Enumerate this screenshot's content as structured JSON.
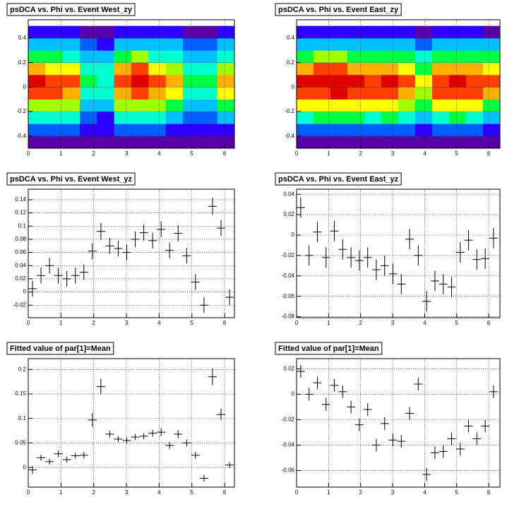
{
  "chart_data": [
    {
      "type": "heatmap",
      "title": "psDCA vs. Phi vs. Event West_zy",
      "xlim": [
        0,
        6.3
      ],
      "ylim": [
        -0.5,
        0.55
      ],
      "xticks": [
        0,
        1,
        2,
        3,
        4,
        5,
        6
      ],
      "yticks": [
        -0.4,
        -0.2,
        0,
        0.2,
        0.4
      ],
      "grid": true,
      "z_xlim": [
        0,
        6.3
      ],
      "z_ylim": [
        -0.5,
        0.5
      ],
      "z": [
        [
          0.1,
          0.1,
          0.1,
          0.05,
          0.05,
          0.1,
          0.1,
          0.1,
          0.1,
          0.05,
          0.05,
          0.1
        ],
        [
          0.25,
          0.25,
          0.25,
          0.15,
          0.15,
          0.25,
          0.25,
          0.25,
          0.2,
          0.15,
          0.15,
          0.2
        ],
        [
          0.4,
          0.4,
          0.4,
          0.25,
          0.2,
          0.4,
          0.4,
          0.4,
          0.35,
          0.25,
          0.25,
          0.35
        ],
        [
          0.6,
          0.6,
          0.55,
          0.35,
          0.3,
          0.55,
          0.6,
          0.55,
          0.5,
          0.35,
          0.35,
          0.5
        ],
        [
          0.8,
          0.8,
          0.75,
          0.45,
          0.4,
          0.75,
          0.8,
          0.75,
          0.7,
          0.45,
          0.45,
          0.7
        ],
        [
          0.95,
          0.85,
          0.8,
          0.5,
          0.45,
          0.85,
          0.92,
          0.8,
          0.75,
          0.5,
          0.5,
          0.75
        ],
        [
          0.75,
          0.7,
          0.65,
          0.45,
          0.4,
          0.75,
          0.8,
          0.65,
          0.6,
          0.45,
          0.45,
          0.6
        ],
        [
          0.5,
          0.5,
          0.45,
          0.35,
          0.3,
          0.5,
          0.55,
          0.45,
          0.45,
          0.35,
          0.35,
          0.45
        ],
        [
          0.3,
          0.3,
          0.3,
          0.25,
          0.2,
          0.3,
          0.3,
          0.3,
          0.3,
          0.25,
          0.25,
          0.3
        ],
        [
          0.15,
          0.15,
          0.15,
          0.1,
          0.1,
          0.15,
          0.15,
          0.15,
          0.15,
          0.1,
          0.1,
          0.15
        ]
      ]
    },
    {
      "type": "heatmap",
      "title": "psDCA vs. Phi vs. Event East_zy",
      "xlim": [
        0,
        6.35
      ],
      "ylim": [
        -0.5,
        0.55
      ],
      "xticks": [
        0,
        1,
        2,
        3,
        4,
        5,
        6
      ],
      "yticks": [
        -0.4,
        -0.2,
        0,
        0.2,
        0.4
      ],
      "grid": true,
      "z_xlim": [
        0,
        6.35
      ],
      "z_ylim": [
        -0.5,
        0.5
      ],
      "z": [
        [
          0.08,
          0.1,
          0.1,
          0.1,
          0.1,
          0.1,
          0.1,
          0.08,
          0.1,
          0.1,
          0.1,
          0.05
        ],
        [
          0.25,
          0.25,
          0.25,
          0.25,
          0.25,
          0.25,
          0.25,
          0.2,
          0.25,
          0.25,
          0.25,
          0.2
        ],
        [
          0.4,
          0.45,
          0.45,
          0.45,
          0.4,
          0.45,
          0.4,
          0.3,
          0.4,
          0.45,
          0.4,
          0.35
        ],
        [
          0.6,
          0.65,
          0.6,
          0.6,
          0.6,
          0.6,
          0.55,
          0.45,
          0.6,
          0.6,
          0.6,
          0.5
        ],
        [
          0.8,
          0.8,
          0.85,
          0.8,
          0.75,
          0.8,
          0.7,
          0.55,
          0.75,
          0.8,
          0.75,
          0.7
        ],
        [
          0.85,
          0.85,
          0.9,
          0.85,
          0.8,
          0.85,
          0.75,
          0.6,
          0.8,
          0.85,
          0.8,
          0.75
        ],
        [
          0.7,
          0.75,
          0.75,
          0.7,
          0.7,
          0.7,
          0.65,
          0.5,
          0.7,
          0.7,
          0.7,
          0.6
        ],
        [
          0.5,
          0.55,
          0.55,
          0.5,
          0.5,
          0.5,
          0.45,
          0.4,
          0.5,
          0.5,
          0.5,
          0.45
        ],
        [
          0.35,
          0.35,
          0.35,
          0.35,
          0.3,
          0.35,
          0.3,
          0.25,
          0.3,
          0.35,
          0.3,
          0.3
        ],
        [
          0.15,
          0.2,
          0.2,
          0.2,
          0.15,
          0.15,
          0.15,
          0.1,
          0.15,
          0.15,
          0.15,
          0.1
        ]
      ]
    },
    {
      "type": "errorbar",
      "title": "psDCA vs. Phi vs. Event West_yz",
      "xlim": [
        0,
        6.3
      ],
      "ylim": [
        -0.039,
        0.156
      ],
      "xticks": [
        0,
        1,
        2,
        3,
        4,
        5,
        6
      ],
      "yticks": [
        -0.02,
        0,
        0.02,
        0.04,
        0.06,
        0.08,
        0.1,
        0.12,
        0.14
      ],
      "grid": true,
      "x": [
        0.13,
        0.39,
        0.65,
        0.92,
        1.18,
        1.44,
        1.7,
        1.96,
        2.22,
        2.49,
        2.75,
        3.01,
        3.27,
        3.53,
        3.8,
        4.06,
        4.32,
        4.58,
        4.84,
        5.11,
        5.37,
        5.63,
        5.89,
        6.15
      ],
      "values": [
        0.005,
        0.025,
        0.04,
        0.025,
        0.02,
        0.025,
        0.03,
        0.062,
        0.092,
        0.07,
        0.066,
        0.06,
        0.08,
        0.09,
        0.078,
        0.095,
        0.063,
        0.089,
        0.055,
        0.015,
        -0.02,
        0.13,
        0.097,
        -0.008
      ],
      "errors": [
        0.012,
        0.012,
        0.012,
        0.012,
        0.012,
        0.012,
        0.012,
        0.012,
        0.013,
        0.012,
        0.012,
        0.012,
        0.012,
        0.012,
        0.012,
        0.012,
        0.012,
        0.012,
        0.012,
        0.012,
        0.012,
        0.013,
        0.012,
        0.012
      ]
    },
    {
      "type": "errorbar",
      "title": "psDCA vs. Phi vs. Event East_yz",
      "xlim": [
        0,
        6.35
      ],
      "ylim": [
        -0.081,
        0.045
      ],
      "xticks": [
        0,
        1,
        2,
        3,
        4,
        5,
        6
      ],
      "yticks": [
        -0.08,
        -0.06,
        -0.04,
        -0.02,
        0,
        0.02,
        0.04
      ],
      "grid": true,
      "x": [
        0.13,
        0.39,
        0.65,
        0.92,
        1.18,
        1.44,
        1.7,
        1.96,
        2.22,
        2.49,
        2.75,
        3.01,
        3.27,
        3.53,
        3.8,
        4.06,
        4.32,
        4.58,
        4.84,
        5.11,
        5.37,
        5.63,
        5.89,
        6.15
      ],
      "values": [
        0.027,
        -0.02,
        0.003,
        -0.022,
        0.004,
        -0.014,
        -0.022,
        -0.025,
        -0.022,
        -0.034,
        -0.03,
        -0.038,
        -0.048,
        -0.004,
        -0.02,
        -0.065,
        -0.045,
        -0.048,
        -0.051,
        -0.017,
        -0.005,
        -0.024,
        -0.023,
        -0.003
      ],
      "errors": [
        0.01,
        0.01,
        0.01,
        0.01,
        0.01,
        0.01,
        0.01,
        0.01,
        0.01,
        0.01,
        0.01,
        0.01,
        0.01,
        0.01,
        0.01,
        0.01,
        0.01,
        0.01,
        0.01,
        0.01,
        0.01,
        0.01,
        0.01,
        0.01
      ]
    },
    {
      "type": "errorbar",
      "title": "Fitted value of par[1]=Mean",
      "xlim": [
        0,
        6.3
      ],
      "ylim": [
        -0.04,
        0.222
      ],
      "xticks": [
        0,
        1,
        2,
        3,
        4,
        5,
        6
      ],
      "yticks": [
        0,
        0.05,
        0.1,
        0.15,
        0.2
      ],
      "grid": true,
      "x": [
        0.13,
        0.39,
        0.65,
        0.92,
        1.18,
        1.44,
        1.7,
        1.96,
        2.22,
        2.49,
        2.75,
        3.01,
        3.27,
        3.53,
        3.8,
        4.06,
        4.32,
        4.58,
        4.84,
        5.11,
        5.37,
        5.63,
        5.89,
        6.15
      ],
      "values": [
        -0.005,
        0.02,
        0.012,
        0.028,
        0.016,
        0.024,
        0.025,
        0.097,
        0.165,
        0.068,
        0.058,
        0.055,
        0.062,
        0.064,
        0.07,
        0.072,
        0.045,
        0.068,
        0.05,
        0.025,
        -0.022,
        0.185,
        0.108,
        0.005
      ],
      "errors": [
        0.008,
        0.006,
        0.006,
        0.007,
        0.006,
        0.006,
        0.007,
        0.014,
        0.016,
        0.007,
        0.006,
        0.006,
        0.006,
        0.006,
        0.007,
        0.008,
        0.007,
        0.008,
        0.007,
        0.007,
        0.007,
        0.017,
        0.012,
        0.006
      ]
    },
    {
      "type": "errorbar",
      "title": "Fitted value of par[1]=Mean",
      "xlim": [
        0,
        6.35
      ],
      "ylim": [
        -0.073,
        0.028
      ],
      "xticks": [
        0,
        1,
        2,
        3,
        4,
        5,
        6
      ],
      "yticks": [
        -0.06,
        -0.04,
        -0.02,
        0,
        0.02
      ],
      "grid": true,
      "x": [
        0.13,
        0.39,
        0.65,
        0.92,
        1.18,
        1.44,
        1.7,
        1.96,
        2.22,
        2.49,
        2.75,
        3.01,
        3.27,
        3.53,
        3.8,
        4.06,
        4.32,
        4.58,
        4.84,
        5.11,
        5.37,
        5.63,
        5.89,
        6.15
      ],
      "values": [
        0.018,
        0.0,
        0.009,
        -0.008,
        0.007,
        0.002,
        -0.01,
        -0.024,
        -0.012,
        -0.04,
        -0.023,
        -0.036,
        -0.037,
        -0.015,
        0.008,
        -0.063,
        -0.046,
        -0.045,
        -0.035,
        -0.043,
        -0.025,
        -0.035,
        -0.025,
        0.002
      ],
      "errors": [
        0.005,
        0.005,
        0.005,
        0.005,
        0.005,
        0.005,
        0.005,
        0.005,
        0.005,
        0.005,
        0.005,
        0.005,
        0.005,
        0.005,
        0.005,
        0.005,
        0.005,
        0.005,
        0.005,
        0.005,
        0.005,
        0.005,
        0.005,
        0.005
      ]
    }
  ]
}
